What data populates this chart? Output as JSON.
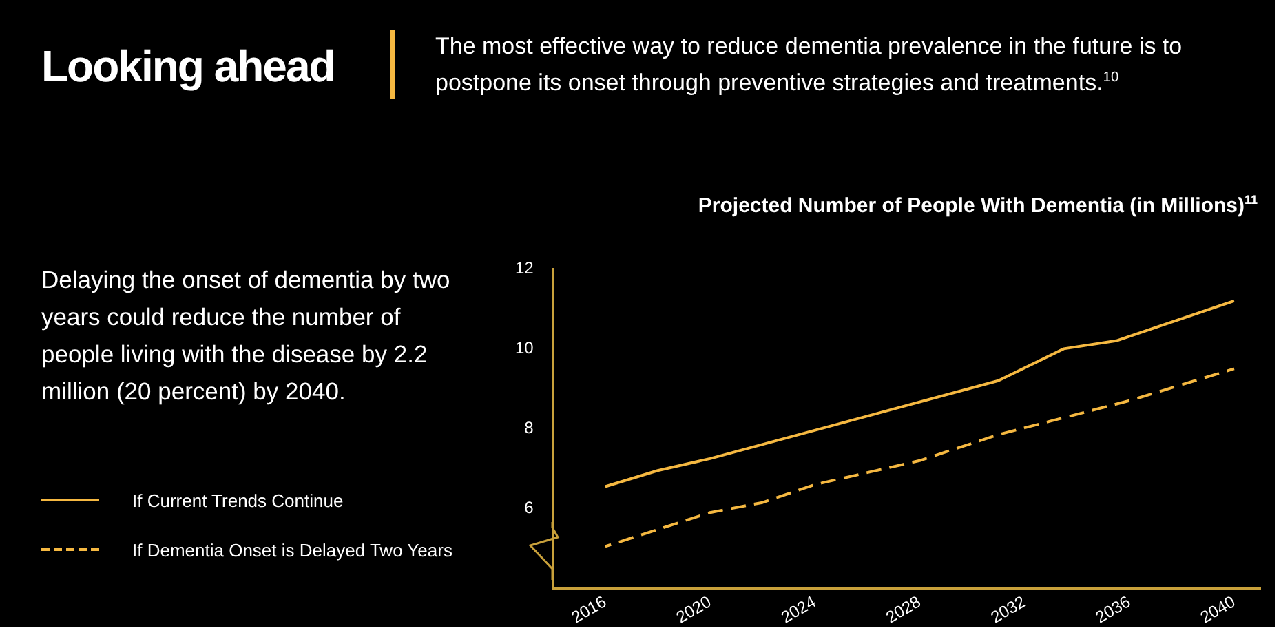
{
  "chart_data": {
    "type": "line",
    "title": "Projected Number of People With Dementia (in Millions)$^{11}$",
    "annotations": [
      "Looking ahead",
      "The most effective way to reduce dementia prevalence in the future is to postpone its onset through preventive strategies and treatments.$^{10}$",
      "Delaying the onset of dementia by two years could reduce the number of people living with the disease by 2.2 million (20 percent) by 2040."
    ],
    "series": [
      {
        "name": "If Current Trends Continue",
        "color": "#f5b841",
        "line_style": "solid",
        "x": [
          2016,
          2018,
          2020,
          2031,
          2033.5,
          2035.5,
          2040
        ],
        "values": [
          6.55,
          6.95,
          7.25,
          9.2,
          10.0,
          10.2,
          11.2
        ]
      },
      {
        "name": "If Dementia Onset is Delayed Two Years",
        "color": "#f5b841",
        "line_style": "dashed",
        "x": [
          2016,
          2020,
          2022,
          2024,
          2028,
          2031,
          2036,
          2040
        ],
        "values": [
          5.05,
          5.9,
          6.15,
          6.6,
          7.2,
          7.85,
          8.7,
          9.5
        ]
      }
    ],
    "xlim": [
      2014,
      2041
    ],
    "xticks": [
      2016,
      2020,
      2024,
      2028,
      2032,
      2036,
      2040
    ],
    "ylim": [
      4,
      12
    ],
    "yticks": [
      6,
      8,
      10,
      12
    ],
    "grid": false,
    "legend": "left",
    "marker": "none"
  }
}
